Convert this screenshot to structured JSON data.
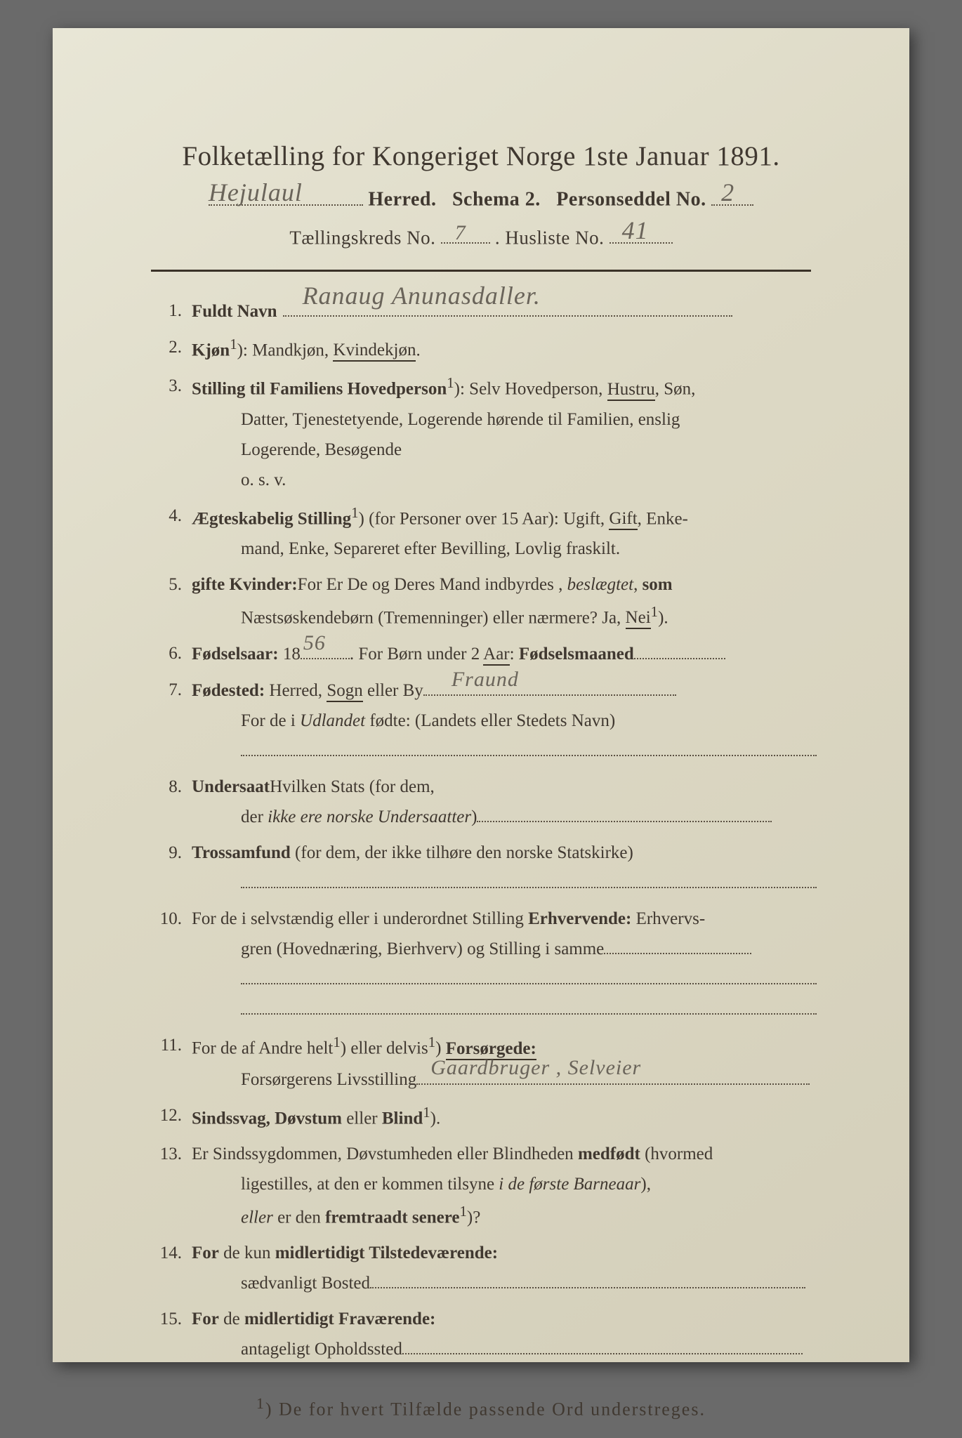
{
  "colors": {
    "paper": "#ddd9c5",
    "ink": "#403830",
    "handwriting": "#6a645a",
    "rule": "#3a3228",
    "dots": "#5a5042"
  },
  "typography": {
    "title_pt": 39,
    "body_pt": 25,
    "hand_pt": 36,
    "line_height": 1.72
  },
  "header": {
    "title": "Folketælling for Kongeriget Norge 1ste Januar 1891.",
    "herred_hand": "Hejulaul",
    "line2_a": "Herred.",
    "line2_b": "Schema 2.",
    "line2_c": "Personseddel No.",
    "personseddel_no": "2",
    "line3_a": "Tællingskreds No.",
    "tkreds_no": "7",
    "line3_b": ".   Husliste No.",
    "husliste_no": "41"
  },
  "items": [
    {
      "n": "1.",
      "label": "Fuldt Navn",
      "hand": "Ranaug   Anunasdaller.",
      "dots_after": true
    },
    {
      "n": "2.",
      "text_a": "Kjøn",
      "sup": "1",
      "text_b": "): Mandkjøn, ",
      "ul": "Kvindekjøn",
      "text_c": "."
    },
    {
      "n": "3.",
      "text_a": "Stilling til Familiens Hovedperson",
      "sup": "1",
      "text_b": "): Selv Hovedperson, ",
      "ul": "Hustru",
      "text_c": ", Søn,",
      "cont": [
        "Datter, Tjenestetyende, Logerende hørende til Familien, enslig",
        "Logerende, Besøgende",
        "o. s. v."
      ]
    },
    {
      "n": "4.",
      "text_a": "Ægteskabelig Stilling",
      "sup": "1",
      "text_b": ") (for Personer over 15 Aar): Ugift, ",
      "ul": "Gift",
      "text_c": ", Enke-",
      "cont": [
        "mand, Enke, Separeret efter Bevilling, Lovlig fraskilt."
      ]
    },
    {
      "n": "5.",
      "text_a": "For ",
      "bold_a": "gifte Kvinder:",
      "text_b": " Er De og Deres Mand indbyrdes ",
      "em": "beslægtet",
      "text_c": ", ",
      "bold_b": "som",
      "cont_html": "Næstsøskendebørn (Tremenninger) eller nærmere?  Ja, <span class=\"ul\">Nei</span><sup>1</sup>)."
    },
    {
      "n": "6.",
      "text_a": "Fødselsaar:",
      "year_prefix": " 18",
      "year_hand": "56",
      "text_b": ".    For Børn under 2 ",
      "ul": "Aar",
      "text_c": ": ",
      "bold_a": "Fødselsmaaned",
      "dots_w": 130
    },
    {
      "n": "7.",
      "text_a": "Fødested:",
      "text_b": " Herred, ",
      "ul": "Sogn",
      "text_c": " eller By",
      "hand": "Fraund",
      "dots_w": 360,
      "cont_a": "For de i ",
      "cont_em": "Udlandet",
      "cont_b": " fødte: (Landets eller Stedets Navn)",
      "cont_dots": true
    },
    {
      "n": "8.",
      "text_a": "Hvilken Stats ",
      "bold_a": "Undersaat",
      "text_b": " (for dem,",
      "cont_a": "der ",
      "cont_em": "ikke ere norske Undersaatter",
      "cont_b": ")",
      "cont_dots_w": 420
    },
    {
      "n": "9.",
      "bold_a": "Trossamfund",
      "text_a": "  (for  dem,  der  ikke  tilhøre  den  norske  Statskirke)",
      "cont_dots": true
    },
    {
      "n": "10.",
      "text_a": "For de i selvstændig eller i underordnet Stilling ",
      "bold_a": "Erhvervende:",
      "text_b": " Erhvervs-",
      "cont": [
        "gren (Hovednæring, Bierhverv) og Stilling i samme"
      ],
      "cont_dots_w": 210,
      "extra_dots": 2
    },
    {
      "n": "11.",
      "text_a": "For de af Andre helt",
      "sup": "1",
      "text_b": ") eller delvis",
      "sup2": "1",
      "text_c": ") ",
      "bold_a": "Forsørgede",
      "ul2": ":",
      "cont_a": "Forsørgerens Livsstilling",
      "cont_hand": "Gaardbruger ,  Selveier",
      "cont_dots_w": 560
    },
    {
      "n": "12.",
      "bold_a": "Sindssvag, Døvstum",
      "text_a": " eller ",
      "bold_b": "Blind",
      "sup": "1",
      "text_b": ")."
    },
    {
      "n": "13.",
      "text_a": "Er Sindssygdommen, Døvstumheden eller Blindheden ",
      "bold_a": "medfødt",
      "text_b": " (hvormed",
      "cont_a": "ligestilles, at den er kommen tilsyne ",
      "cont_em": "i de første Barneaar",
      "cont_b": "),",
      "cont2_em": "eller",
      "cont2_a": " er den ",
      "cont2_bold": "fremtraadt senere",
      "cont2_sup": "1",
      "cont2_b": ")?"
    },
    {
      "n": "14.",
      "bold_a": "For",
      "text_a": " de kun ",
      "bold_b": "midlertidigt Tilstedeværende:",
      "cont_a": "sædvanligt Bosted",
      "cont_dots_w": 620
    },
    {
      "n": "15.",
      "bold_a": "For",
      "text_a": " de ",
      "bold_b": "midlertidigt Fraværende:",
      "cont_a": "antageligt Opholdssted",
      "cont_dots_w": 570
    }
  ],
  "footnote": {
    "sup": "1",
    "text": ") De for hvert Tilfælde passende Ord understreges."
  }
}
